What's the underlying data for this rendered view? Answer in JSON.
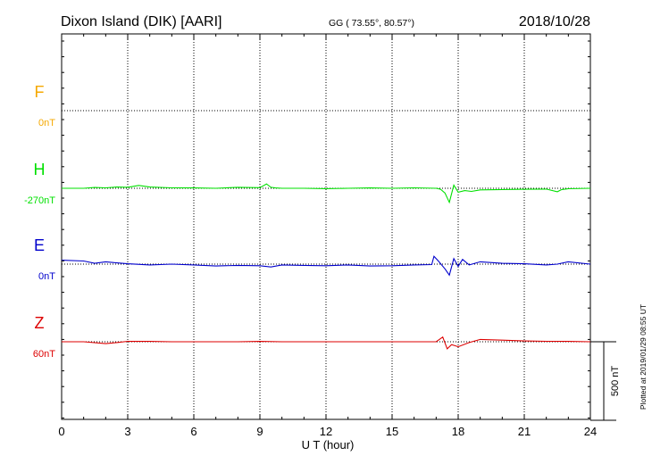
{
  "header": {
    "station": "Dixon Island (DIK)  [AARI]",
    "coords": "GG ( 73.55°,  80.57°)",
    "date": "2018/10/28"
  },
  "footer_note": "Plotted at 2019/01/29 08:55 UT",
  "colors": {
    "F": "#f5a800",
    "H": "#00e000",
    "E": "#0000cc",
    "Z": "#dd0000",
    "axis": "#000000"
  },
  "chart_data": {
    "type": "line",
    "title": "Dixon Island (DIK)  [AARI]",
    "xlabel": "U T (hour)",
    "xlim": [
      0,
      24
    ],
    "x_ticks": [
      0,
      3,
      6,
      9,
      12,
      15,
      18,
      21,
      24
    ],
    "x_tick_labels": [
      "0",
      "3",
      "6",
      "9",
      "12",
      "15",
      "18",
      "21",
      "24"
    ],
    "grid": true,
    "scale_bar_label": "500 nT",
    "scale_bar_nT": 500,
    "channels": [
      {
        "name": "F",
        "baseline_label": "0nT",
        "color": "#f5a800",
        "values": []
      },
      {
        "name": "H",
        "baseline_label": "-270nT",
        "color": "#00e000",
        "x": [
          0,
          1,
          1.5,
          2,
          2.5,
          3,
          3.5,
          4,
          5,
          6,
          7,
          8,
          9,
          9.3,
          9.5,
          9.7,
          10,
          11,
          12,
          13,
          14,
          15,
          16,
          17,
          17.2,
          17.4,
          17.6,
          17.8,
          18,
          18.3,
          18.6,
          19,
          20,
          21,
          22,
          22.5,
          22.7,
          23,
          24
        ],
        "values": [
          0,
          0,
          5,
          3,
          8,
          6,
          18,
          8,
          3,
          2,
          0,
          6,
          4,
          28,
          6,
          2,
          0,
          0,
          -2,
          0,
          2,
          0,
          3,
          0,
          -6,
          -30,
          -90,
          20,
          -25,
          -15,
          -20,
          -10,
          -8,
          -6,
          -5,
          -22,
          -8,
          -3,
          0
        ]
      },
      {
        "name": "E",
        "baseline_label": "0nT",
        "color": "#0000cc",
        "x": [
          0,
          1,
          1.5,
          2,
          2.5,
          3,
          4,
          5,
          6,
          7,
          8,
          9,
          9.5,
          10,
          11,
          12,
          13,
          14,
          15,
          16,
          16.8,
          16.9,
          17.1,
          17.4,
          17.6,
          17.8,
          18,
          18.2,
          18.5,
          19,
          20,
          21,
          22,
          22.5,
          23,
          24
        ],
        "values": [
          25,
          20,
          5,
          15,
          8,
          2,
          -5,
          0,
          -5,
          -12,
          -8,
          -10,
          -18,
          -5,
          -8,
          -10,
          -5,
          -12,
          -10,
          -5,
          -3,
          50,
          20,
          -30,
          -70,
          35,
          -15,
          30,
          -5,
          15,
          5,
          2,
          -5,
          0,
          15,
          0
        ]
      },
      {
        "name": "Z",
        "baseline_label": "60nT",
        "color": "#dd0000",
        "x": [
          0,
          1,
          2,
          2.5,
          3,
          4,
          5,
          6,
          7,
          8,
          9,
          10,
          11,
          12,
          13,
          14,
          15,
          16,
          17,
          17.3,
          17.5,
          17.7,
          18,
          18.5,
          19,
          20,
          21,
          22,
          23,
          24
        ],
        "values": [
          0,
          0,
          -12,
          -5,
          3,
          2,
          0,
          0,
          0,
          0,
          2,
          0,
          0,
          0,
          0,
          0,
          0,
          0,
          0,
          30,
          -45,
          -18,
          -32,
          -5,
          15,
          10,
          5,
          3,
          2,
          0
        ]
      }
    ]
  }
}
